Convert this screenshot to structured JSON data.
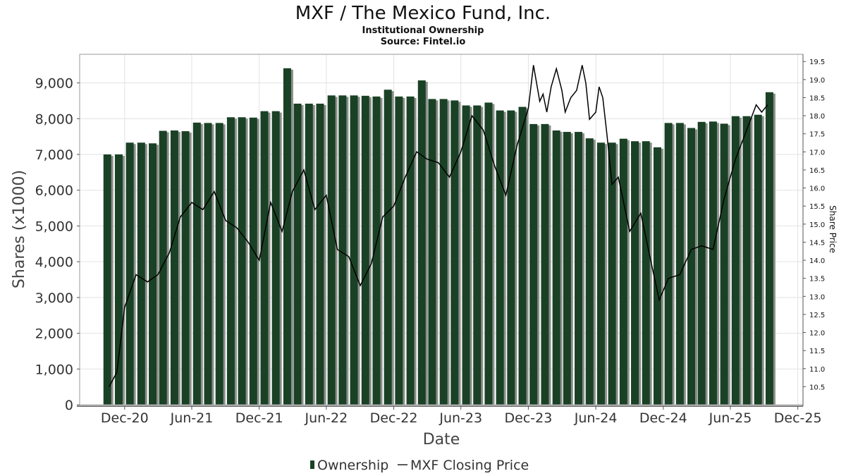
{
  "chart_data": {
    "type": "bar",
    "title": "MXF / The Mexico Fund, Inc.",
    "subtitle": "Institutional Ownership",
    "source": "Source: Fintel.io",
    "xlabel": "Date",
    "ylabel": "Shares (x1000)",
    "y2label": "Share Price",
    "ylim": [
      0,
      9800
    ],
    "y2lim": [
      10.0,
      19.7
    ],
    "yticks": [
      0,
      1000,
      2000,
      3000,
      4000,
      5000,
      6000,
      7000,
      8000,
      9000
    ],
    "ytick_labels": [
      "0",
      "1,000",
      "2,000",
      "3,000",
      "4,000",
      "5,000",
      "6,000",
      "7,000",
      "8,000",
      "9,000"
    ],
    "y2ticks": [
      10.5,
      11.0,
      11.5,
      12.0,
      12.5,
      13.0,
      13.5,
      14.0,
      14.5,
      15.0,
      15.5,
      16.0,
      16.5,
      17.0,
      17.5,
      18.0,
      18.5,
      19.0,
      19.5
    ],
    "xlim": [
      "2020-08-01",
      "2025-12-15"
    ],
    "xticks": [
      {
        "date": "2020-12-01",
        "label": "Dec-20"
      },
      {
        "date": "2021-06-01",
        "label": "Jun-21"
      },
      {
        "date": "2021-12-01",
        "label": "Dec-21"
      },
      {
        "date": "2022-06-01",
        "label": "Jun-22"
      },
      {
        "date": "2022-12-01",
        "label": "Dec-22"
      },
      {
        "date": "2023-06-01",
        "label": "Jun-23"
      },
      {
        "date": "2023-12-01",
        "label": "Dec-23"
      },
      {
        "date": "2024-06-01",
        "label": "Jun-24"
      },
      {
        "date": "2024-12-01",
        "label": "Dec-24"
      },
      {
        "date": "2025-06-01",
        "label": "Jun-25"
      },
      {
        "date": "2025-12-01",
        "label": "Dec-25"
      }
    ],
    "grid": true,
    "legend_position": "bottom",
    "series": [
      {
        "name": "Ownership",
        "kind": "bar",
        "color": "#1a4125",
        "shadow_color": "#8a8f8a",
        "points": [
          {
            "date": "2020-10-15",
            "value": 7000
          },
          {
            "date": "2020-11-15",
            "value": 7000
          },
          {
            "date": "2020-12-15",
            "value": 7330
          },
          {
            "date": "2021-01-15",
            "value": 7330
          },
          {
            "date": "2021-02-15",
            "value": 7310
          },
          {
            "date": "2021-03-15",
            "value": 7660
          },
          {
            "date": "2021-04-15",
            "value": 7670
          },
          {
            "date": "2021-05-15",
            "value": 7650
          },
          {
            "date": "2021-06-15",
            "value": 7890
          },
          {
            "date": "2021-07-15",
            "value": 7880
          },
          {
            "date": "2021-08-15",
            "value": 7880
          },
          {
            "date": "2021-09-15",
            "value": 8040
          },
          {
            "date": "2021-10-15",
            "value": 8040
          },
          {
            "date": "2021-11-15",
            "value": 8030
          },
          {
            "date": "2021-12-15",
            "value": 8210
          },
          {
            "date": "2022-01-15",
            "value": 8210
          },
          {
            "date": "2022-02-15",
            "value": 9410
          },
          {
            "date": "2022-03-15",
            "value": 8420
          },
          {
            "date": "2022-04-15",
            "value": 8420
          },
          {
            "date": "2022-05-15",
            "value": 8420
          },
          {
            "date": "2022-06-15",
            "value": 8650
          },
          {
            "date": "2022-07-15",
            "value": 8650
          },
          {
            "date": "2022-08-15",
            "value": 8650
          },
          {
            "date": "2022-09-15",
            "value": 8640
          },
          {
            "date": "2022-10-15",
            "value": 8620
          },
          {
            "date": "2022-11-15",
            "value": 8810
          },
          {
            "date": "2022-12-15",
            "value": 8620
          },
          {
            "date": "2023-01-15",
            "value": 8620
          },
          {
            "date": "2023-02-15",
            "value": 9070
          },
          {
            "date": "2023-03-15",
            "value": 8550
          },
          {
            "date": "2023-04-15",
            "value": 8550
          },
          {
            "date": "2023-05-15",
            "value": 8510
          },
          {
            "date": "2023-06-15",
            "value": 8370
          },
          {
            "date": "2023-07-15",
            "value": 8370
          },
          {
            "date": "2023-08-15",
            "value": 8450
          },
          {
            "date": "2023-09-15",
            "value": 8230
          },
          {
            "date": "2023-10-15",
            "value": 8230
          },
          {
            "date": "2023-11-15",
            "value": 8330
          },
          {
            "date": "2023-12-15",
            "value": 7850
          },
          {
            "date": "2024-01-15",
            "value": 7850
          },
          {
            "date": "2024-02-15",
            "value": 7670
          },
          {
            "date": "2024-03-15",
            "value": 7630
          },
          {
            "date": "2024-04-15",
            "value": 7630
          },
          {
            "date": "2024-05-15",
            "value": 7450
          },
          {
            "date": "2024-06-15",
            "value": 7330
          },
          {
            "date": "2024-07-15",
            "value": 7330
          },
          {
            "date": "2024-08-15",
            "value": 7440
          },
          {
            "date": "2024-09-15",
            "value": 7370
          },
          {
            "date": "2024-10-15",
            "value": 7370
          },
          {
            "date": "2024-11-15",
            "value": 7200
          },
          {
            "date": "2024-12-15",
            "value": 7880
          },
          {
            "date": "2025-01-15",
            "value": 7880
          },
          {
            "date": "2025-02-15",
            "value": 7740
          },
          {
            "date": "2025-03-15",
            "value": 7910
          },
          {
            "date": "2025-04-15",
            "value": 7920
          },
          {
            "date": "2025-05-15",
            "value": 7860
          },
          {
            "date": "2025-06-15",
            "value": 8070
          },
          {
            "date": "2025-07-15",
            "value": 8070
          },
          {
            "date": "2025-08-15",
            "value": 8110
          },
          {
            "date": "2025-09-15",
            "value": 8740
          }
        ]
      },
      {
        "name": "MXF Closing Price",
        "kind": "line",
        "axis": "right",
        "color": "#000000",
        "points": [
          {
            "date": "2020-10-20",
            "value": 10.5
          },
          {
            "date": "2020-11-10",
            "value": 10.9
          },
          {
            "date": "2020-12-01",
            "value": 12.7
          },
          {
            "date": "2021-01-01",
            "value": 13.6
          },
          {
            "date": "2021-02-01",
            "value": 13.4
          },
          {
            "date": "2021-03-01",
            "value": 13.6
          },
          {
            "date": "2021-04-01",
            "value": 14.2
          },
          {
            "date": "2021-05-01",
            "value": 15.2
          },
          {
            "date": "2021-06-01",
            "value": 15.6
          },
          {
            "date": "2021-07-01",
            "value": 15.4
          },
          {
            "date": "2021-08-01",
            "value": 15.9
          },
          {
            "date": "2021-09-01",
            "value": 15.1
          },
          {
            "date": "2021-10-01",
            "value": 14.9
          },
          {
            "date": "2021-11-01",
            "value": 14.5
          },
          {
            "date": "2021-12-01",
            "value": 14.0
          },
          {
            "date": "2022-01-01",
            "value": 15.6
          },
          {
            "date": "2022-02-01",
            "value": 14.8
          },
          {
            "date": "2022-03-01",
            "value": 15.9
          },
          {
            "date": "2022-04-01",
            "value": 16.5
          },
          {
            "date": "2022-05-01",
            "value": 15.4
          },
          {
            "date": "2022-06-01",
            "value": 15.8
          },
          {
            "date": "2022-07-01",
            "value": 14.3
          },
          {
            "date": "2022-08-01",
            "value": 14.1
          },
          {
            "date": "2022-09-01",
            "value": 13.3
          },
          {
            "date": "2022-10-01",
            "value": 13.9
          },
          {
            "date": "2022-11-01",
            "value": 15.2
          },
          {
            "date": "2022-12-01",
            "value": 15.5
          },
          {
            "date": "2023-01-01",
            "value": 16.3
          },
          {
            "date": "2023-02-01",
            "value": 17.0
          },
          {
            "date": "2023-03-01",
            "value": 16.8
          },
          {
            "date": "2023-04-01",
            "value": 16.7
          },
          {
            "date": "2023-05-01",
            "value": 16.3
          },
          {
            "date": "2023-06-01",
            "value": 17.0
          },
          {
            "date": "2023-07-01",
            "value": 18.0
          },
          {
            "date": "2023-08-01",
            "value": 17.6
          },
          {
            "date": "2023-09-01",
            "value": 16.6
          },
          {
            "date": "2023-10-01",
            "value": 15.8
          },
          {
            "date": "2023-11-01",
            "value": 17.2
          },
          {
            "date": "2023-12-01",
            "value": 18.2
          },
          {
            "date": "2023-12-15",
            "value": 19.4
          },
          {
            "date": "2024-01-01",
            "value": 18.4
          },
          {
            "date": "2024-01-10",
            "value": 18.6
          },
          {
            "date": "2024-01-20",
            "value": 18.1
          },
          {
            "date": "2024-02-01",
            "value": 18.8
          },
          {
            "date": "2024-02-15",
            "value": 19.3
          },
          {
            "date": "2024-03-01",
            "value": 18.7
          },
          {
            "date": "2024-03-10",
            "value": 18.1
          },
          {
            "date": "2024-03-25",
            "value": 18.5
          },
          {
            "date": "2024-04-10",
            "value": 18.7
          },
          {
            "date": "2024-04-25",
            "value": 19.4
          },
          {
            "date": "2024-05-05",
            "value": 18.9
          },
          {
            "date": "2024-05-15",
            "value": 17.9
          },
          {
            "date": "2024-06-01",
            "value": 18.1
          },
          {
            "date": "2024-06-10",
            "value": 18.8
          },
          {
            "date": "2024-06-20",
            "value": 18.5
          },
          {
            "date": "2024-07-01",
            "value": 17.5
          },
          {
            "date": "2024-07-15",
            "value": 16.1
          },
          {
            "date": "2024-08-01",
            "value": 16.3
          },
          {
            "date": "2024-09-01",
            "value": 14.8
          },
          {
            "date": "2024-10-01",
            "value": 15.3
          },
          {
            "date": "2024-11-01",
            "value": 13.8
          },
          {
            "date": "2024-11-20",
            "value": 12.9
          },
          {
            "date": "2024-12-15",
            "value": 13.5
          },
          {
            "date": "2025-01-15",
            "value": 13.6
          },
          {
            "date": "2025-02-15",
            "value": 14.3
          },
          {
            "date": "2025-03-15",
            "value": 14.4
          },
          {
            "date": "2025-04-15",
            "value": 14.3
          },
          {
            "date": "2025-05-15",
            "value": 15.7
          },
          {
            "date": "2025-06-15",
            "value": 16.8
          },
          {
            "date": "2025-07-15",
            "value": 17.6
          },
          {
            "date": "2025-08-10",
            "value": 18.3
          },
          {
            "date": "2025-08-25",
            "value": 18.1
          },
          {
            "date": "2025-09-10",
            "value": 18.3
          }
        ]
      }
    ]
  },
  "legend": {
    "items": [
      {
        "label": "Ownership",
        "symbol": "bar-icon"
      },
      {
        "label": "MXF Closing Price",
        "symbol": "line-icon"
      }
    ]
  }
}
